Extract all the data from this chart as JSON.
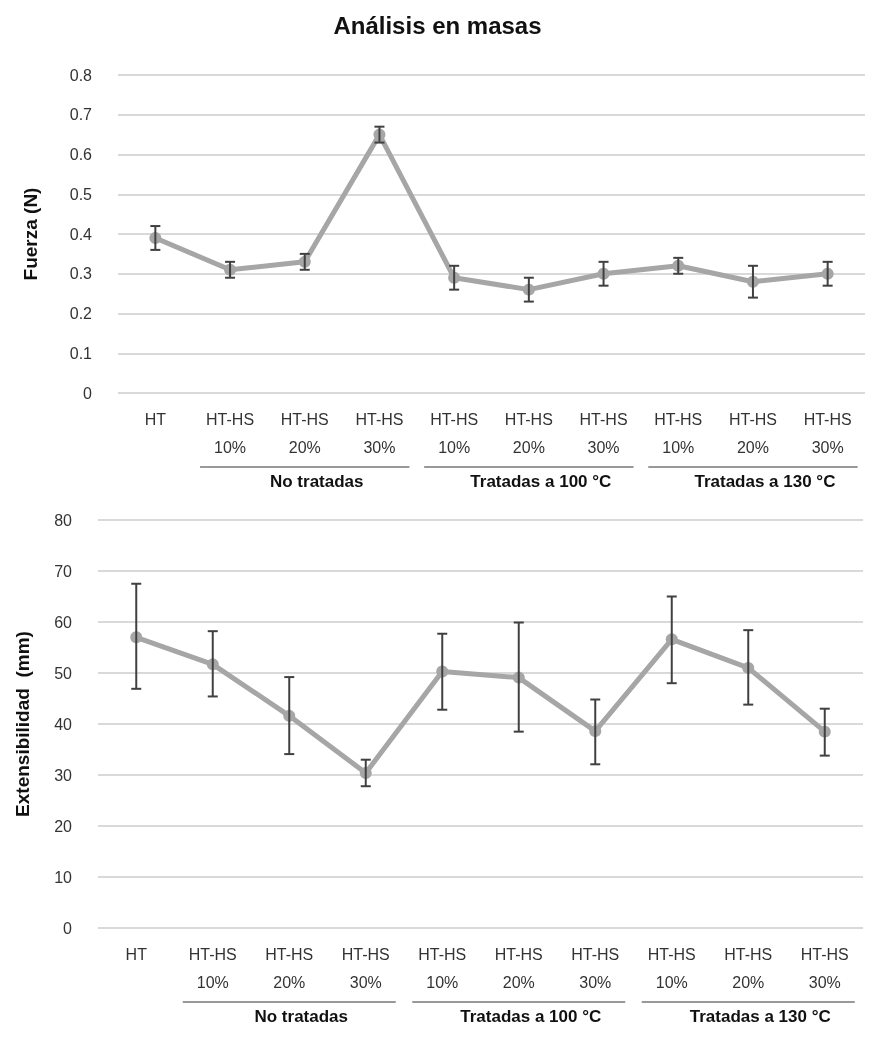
{
  "chart_data": [
    {
      "type": "line",
      "title": "Análisis en masas",
      "ylabel": "Fuerza (N)",
      "categories": [
        "HT",
        "HT-HS\n10%",
        "HT-HS\n20%",
        "HT-HS\n30%",
        "HT-HS\n10%",
        "HT-HS\n20%",
        "HT-HS\n30%",
        "HT-HS\n10%",
        "HT-HS\n20%",
        "HT-HS\n30%"
      ],
      "series": [
        {
          "color": "#a6a6a6",
          "values": [
            0.39,
            0.31,
            0.33,
            0.65,
            0.29,
            0.26,
            0.3,
            0.32,
            0.28,
            0.3
          ],
          "errors": [
            [
              0.36,
              0.42
            ],
            [
              0.29,
              0.33
            ],
            [
              0.31,
              0.35
            ],
            [
              0.63,
              0.67
            ],
            [
              0.26,
              0.32
            ],
            [
              0.23,
              0.29
            ],
            [
              0.27,
              0.33
            ],
            [
              0.3,
              0.34
            ],
            [
              0.24,
              0.32
            ],
            [
              0.27,
              0.33
            ]
          ]
        }
      ],
      "ylim": [
        0,
        0.8
      ],
      "yticks": [
        0,
        0.1,
        0.2,
        0.3,
        0.4,
        0.5,
        0.6,
        0.7,
        0.8
      ],
      "annotations": [
        "No tratadas",
        "Tratadas a 100 °C",
        "Tratadas a 130 °C"
      ],
      "grid": "y",
      "marker": "circle",
      "line_style": "solid"
    },
    {
      "type": "line",
      "ylabel": "Extensibilidad  (mm)",
      "categories": [
        "HT",
        "HT-HS\n10%",
        "HT-HS\n20%",
        "HT-HS\n30%",
        "HT-HS\n10%",
        "HT-HS\n20%",
        "HT-HS\n30%",
        "HT-HS\n10%",
        "HT-HS\n20%",
        "HT-HS\n30%"
      ],
      "series": [
        {
          "color": "#a6a6a6",
          "values": [
            57.0,
            51.7,
            41.6,
            30.4,
            50.3,
            49.1,
            38.6,
            56.6,
            51.0,
            38.5
          ],
          "errors": [
            [
              46.9,
              67.5
            ],
            [
              45.4,
              58.2
            ],
            [
              34.1,
              49.2
            ],
            [
              27.8,
              33.0
            ],
            [
              42.8,
              57.7
            ],
            [
              38.5,
              59.9
            ],
            [
              32.1,
              44.8
            ],
            [
              48.0,
              65.0
            ],
            [
              43.8,
              58.4
            ],
            [
              33.8,
              43.0
            ]
          ]
        }
      ],
      "ylim": [
        0,
        80
      ],
      "yticks": [
        0,
        10,
        20,
        30,
        40,
        50,
        60,
        70,
        80
      ],
      "annotations": [
        "No tratadas",
        "Tratadas a 100 °C",
        "Tratadas a 130 °C"
      ],
      "grid": "y",
      "marker": "circle",
      "line_style": "solid"
    }
  ]
}
